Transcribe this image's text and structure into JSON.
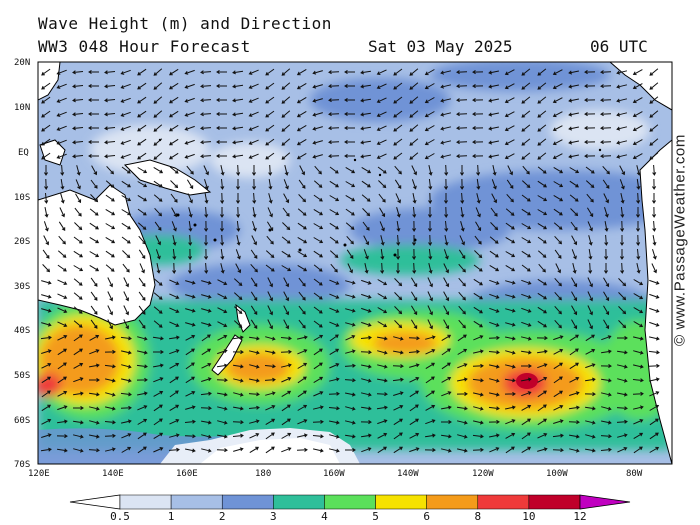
{
  "header": {
    "title": "Wave Height (m) and Direction",
    "model": "WW3 048 Hour Forecast",
    "date": "Sat 03 May 2025",
    "time": "06 UTC"
  },
  "axes": {
    "latitudes": [
      "20N",
      "10N",
      "EQ",
      "10S",
      "20S",
      "30S",
      "40S",
      "50S",
      "60S",
      "70S"
    ],
    "longitudes": [
      "120E",
      "140E",
      "160E",
      "180",
      "160W",
      "140W",
      "120W",
      "100W",
      "80W"
    ]
  },
  "colorbar": {
    "labels": [
      "0.5",
      "1",
      "2",
      "3",
      "4",
      "5",
      "6",
      "8",
      "10",
      "12"
    ],
    "colors": [
      "#dbe4f3",
      "#a7bfe6",
      "#6f93d6",
      "#2fbf9a",
      "#5be05b",
      "#f6e200",
      "#f49b1a",
      "#ef3a3a",
      "#c0002a",
      "#c000c0"
    ]
  },
  "credit": "© www.PassageWeather.com",
  "colors": {
    "land": "#ffffff",
    "coast": "#000000",
    "arrow": "#111111"
  }
}
